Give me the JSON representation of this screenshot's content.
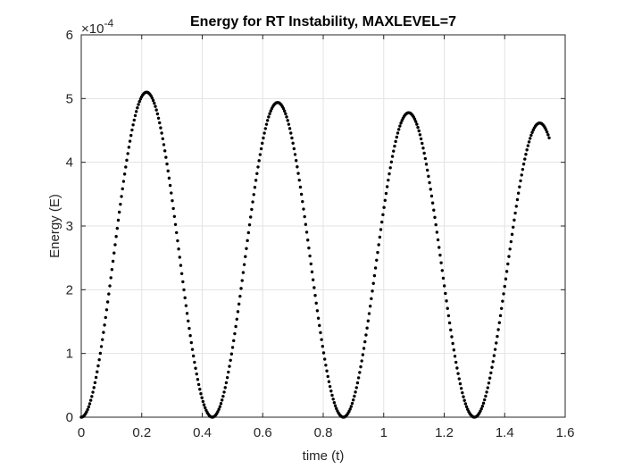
{
  "chart_data": {
    "type": "scatter",
    "title": "Energy for RT Instability, MAXLEVEL=7",
    "xlabel": "time (t)",
    "ylabel": "Energy (E)",
    "y_exponent_label": "×10",
    "y_exponent_power": "-4",
    "xlim": [
      0,
      1.6
    ],
    "ylim": [
      0,
      6
    ],
    "xticks": [
      "0",
      "0.2",
      "0.4",
      "0.6",
      "0.8",
      "1",
      "1.2",
      "1.4",
      "1.6"
    ],
    "yticks": [
      "0",
      "1",
      "2",
      "3",
      "4",
      "5",
      "6"
    ],
    "grid": true,
    "marker_color": "#000000",
    "y_scale": "1e-4",
    "series": [
      {
        "t_end": 1.55,
        "period": 0.4333,
        "amplitude_start": 5.18,
        "amplitude_decay_per_unit_t": 0.372,
        "sample_step": 0.0035,
        "peaks": [
          {
            "t": 0.215,
            "E": 5.18
          },
          {
            "t": 0.648,
            "E": 5.01
          },
          {
            "t": 1.082,
            "E": 4.86
          },
          {
            "t": 1.515,
            "E": 4.7
          }
        ],
        "minima": [
          {
            "t": 0.0,
            "E": 0.0
          },
          {
            "t": 0.433,
            "E": 0.0
          },
          {
            "t": 0.866,
            "E": 0.0
          },
          {
            "t": 1.3,
            "E": 0.0
          }
        ],
        "end_point": {
          "t": 1.55,
          "E": 4.32
        }
      }
    ]
  }
}
